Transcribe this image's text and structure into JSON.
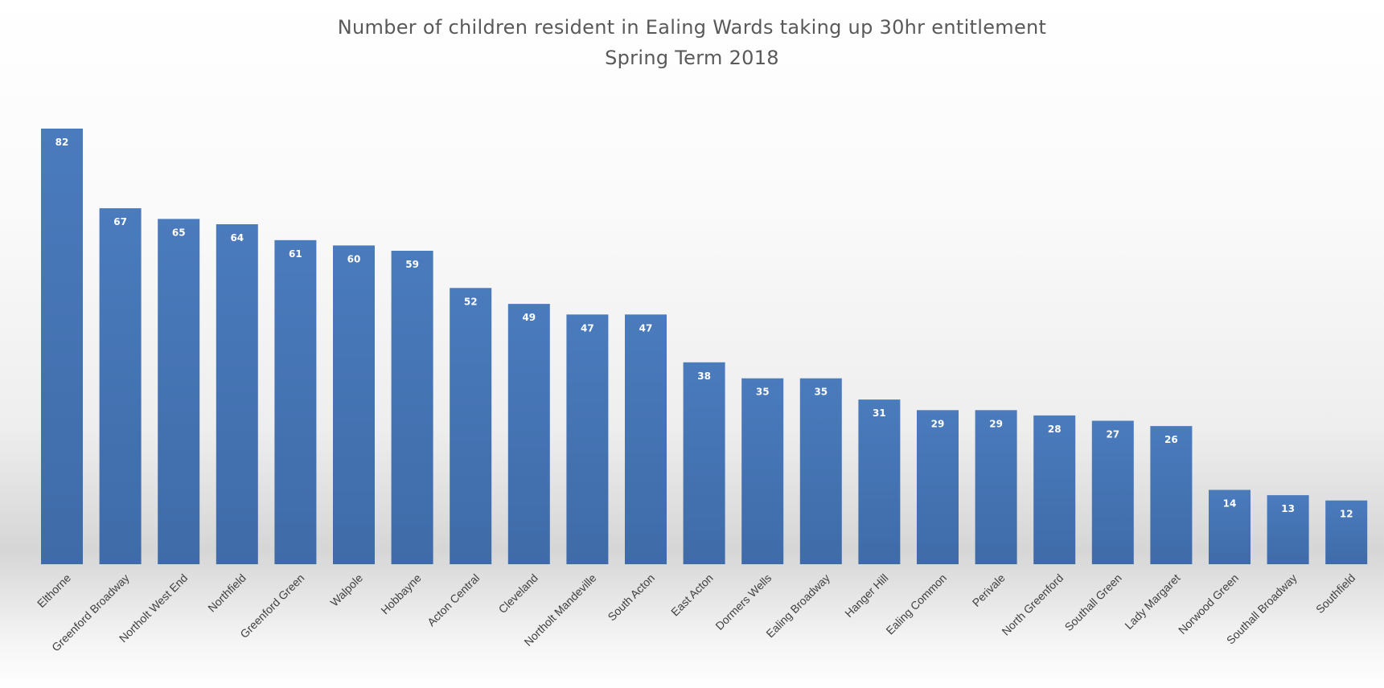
{
  "chart_data": {
    "type": "bar",
    "title": "Number of children resident in Ealing Wards taking up 30hr entitlement",
    "subtitle": "Spring Term 2018",
    "xlabel": "",
    "ylabel": "",
    "ylim": [
      0,
      82
    ],
    "grid": false,
    "legend": "none",
    "categories": [
      "Elthorne",
      "Greenford Broadway",
      "Northolt West End",
      "Northfield",
      "Greenford Green",
      "Walpole",
      "Hobbayne",
      "Acton Central",
      "Cleveland",
      "Northolt Mandeville",
      "South Acton",
      "East Acton",
      "Dormers Wells",
      "Ealing Broadway",
      "Hanger Hill",
      "Ealing Common",
      "Perivale",
      "North Greenford",
      "Southall Green",
      "Lady Margaret",
      "Norwood Green",
      "Southall Broadway",
      "Southfield"
    ],
    "values": [
      82,
      67,
      65,
      64,
      61,
      60,
      59,
      52,
      49,
      47,
      47,
      38,
      35,
      35,
      31,
      29,
      29,
      28,
      27,
      26,
      14,
      13,
      12
    ],
    "bar_color": "#4a7bbd",
    "bar_color_dark": "#3f6ba8",
    "label_color": "#ffffff",
    "tick_color": "#404040"
  }
}
